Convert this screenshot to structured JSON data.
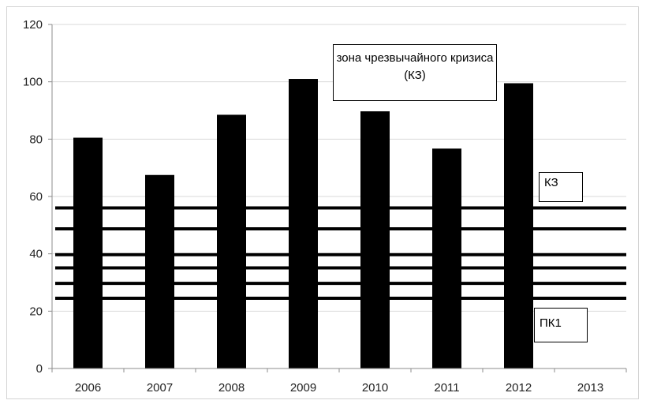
{
  "chart_data": {
    "type": "bar",
    "categories": [
      "2006",
      "2007",
      "2008",
      "2009",
      "2010",
      "2011",
      "2012",
      "2013"
    ],
    "values": [
      80.5,
      67.5,
      88.5,
      101,
      89.7,
      76.7,
      99.5,
      null
    ],
    "ylim": [
      0,
      120
    ],
    "yticks": [
      "0",
      "20",
      "40",
      "60",
      "80",
      "100",
      "120"
    ],
    "grid": true,
    "bar_color": "#000000",
    "threshold_lines": [
      56,
      48.7,
      39.7,
      35.1,
      29.7,
      24.5
    ],
    "annotations": {
      "zone": "зона чрезвычайного кризиса (КЗ)",
      "kz": "КЗ",
      "pk1": "ПК1"
    }
  }
}
